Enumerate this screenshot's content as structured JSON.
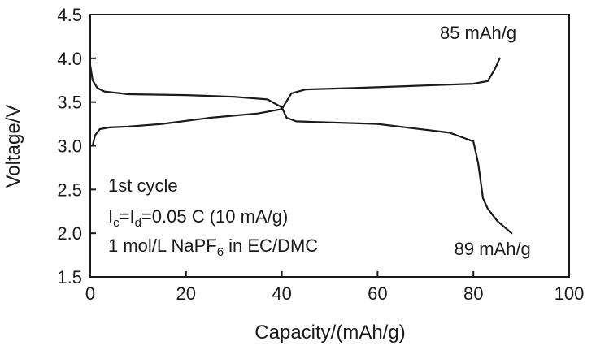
{
  "chart_data": {
    "type": "line",
    "title": "",
    "xlabel": "Capacity/(mAh/g)",
    "ylabel": "Voltage/V",
    "xlim": [
      0,
      100
    ],
    "ylim": [
      1.5,
      4.5
    ],
    "xticks": [
      0,
      20,
      40,
      60,
      80,
      100
    ],
    "yticks": [
      1.5,
      2.0,
      2.5,
      3.0,
      3.5,
      4.0,
      4.5
    ],
    "ytick_labels": [
      "1.5",
      "2.0",
      "2.5",
      "3.0",
      "3.5",
      "4.0",
      "4.5"
    ],
    "grid": false,
    "series": [
      {
        "name": "",
        "x": [
          0.5,
          1,
          2,
          4,
          8,
          15,
          25,
          35,
          40,
          42,
          45,
          55,
          70,
          80,
          83,
          84.5,
          85.5
        ],
        "y": [
          3.0,
          3.12,
          3.19,
          3.21,
          3.22,
          3.25,
          3.32,
          3.37,
          3.42,
          3.6,
          3.645,
          3.66,
          3.69,
          3.71,
          3.74,
          3.88,
          4.0
        ]
      },
      {
        "name": "",
        "x": [
          0,
          0.5,
          1.5,
          3,
          8,
          20,
          30,
          37,
          40,
          41,
          43,
          60,
          75,
          80,
          81,
          82,
          83,
          85,
          88
        ],
        "y": [
          3.92,
          3.75,
          3.66,
          3.62,
          3.59,
          3.58,
          3.56,
          3.53,
          3.44,
          3.32,
          3.28,
          3.25,
          3.15,
          3.05,
          2.8,
          2.4,
          2.28,
          2.14,
          2.0
        ]
      }
    ],
    "annotations": [
      {
        "text": "85 mAh/g",
        "x": 73,
        "y": 4.22
      },
      {
        "text": "89 mAh/g",
        "x": 76,
        "y": 1.75
      }
    ],
    "notes": {
      "line1": "1st cycle",
      "line2_I": "I",
      "line2_c": "c",
      "line2_eq": "=I",
      "line2_d": "d",
      "line2_rest": "=0.05 C (10 mA/g)",
      "line3_a": "1 mol/L NaPF",
      "line3_sub": "6",
      "line3_b": " in EC/DMC"
    }
  }
}
